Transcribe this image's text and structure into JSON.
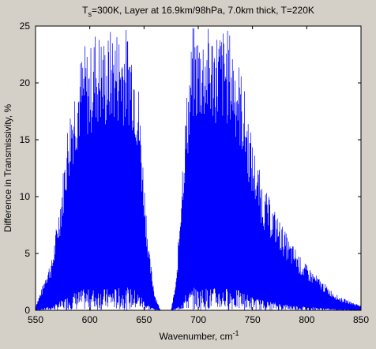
{
  "chart_data": {
    "type": "line",
    "title": {
      "main": "T",
      "sub": "s",
      "rest": "=300K, Layer at 16.9km/98hPa, 7.0km thick, T=220K"
    },
    "xlabel": {
      "main": "Wavenumber, cm",
      "sup": "-1"
    },
    "ylabel": "Difference in Transmissivity, %",
    "xlim": [
      550,
      850
    ],
    "ylim": [
      0,
      25
    ],
    "xticks": [
      550,
      600,
      650,
      700,
      750,
      800,
      850
    ],
    "yticks": [
      0,
      5,
      10,
      15,
      20,
      25
    ],
    "series": [
      {
        "color": "#0000ff",
        "sampling_note_cm-1": 0.5,
        "envelope": {
          "x": [
            550,
            556,
            560,
            565,
            570,
            575,
            580,
            585,
            590,
            595,
            600,
            605,
            610,
            615,
            620,
            625,
            630,
            635,
            640,
            645,
            650,
            655,
            660,
            665,
            670,
            675,
            680,
            685,
            690,
            695,
            700,
            705,
            710,
            715,
            720,
            725,
            730,
            735,
            740,
            745,
            750,
            755,
            760,
            765,
            770,
            775,
            780,
            785,
            790,
            795,
            800,
            805,
            810,
            815,
            820,
            825,
            830,
            835,
            840,
            845,
            850
          ],
          "y": [
            0.4,
            2.0,
            3.5,
            4.5,
            8.0,
            12.0,
            17.0,
            20.0,
            22.0,
            23.5,
            23.0,
            25.0,
            24.5,
            24.0,
            25.0,
            25.0,
            25.0,
            25.0,
            24.0,
            20.0,
            12.0,
            5.0,
            1.5,
            0.0,
            0.0,
            0.0,
            3.0,
            13.0,
            20.0,
            25.0,
            25.0,
            25.0,
            25.0,
            25.0,
            25.0,
            25.0,
            24.5,
            23.0,
            21.0,
            18.0,
            15.0,
            13.0,
            11.0,
            10.0,
            9.0,
            8.0,
            7.0,
            6.0,
            5.5,
            4.5,
            4.0,
            3.5,
            3.0,
            2.5,
            2.0,
            1.6,
            1.2,
            1.0,
            0.8,
            0.6,
            0.5
          ]
        }
      }
    ],
    "grid": false,
    "background_color": "#ffffff",
    "figure_color": "#d4d0c8"
  }
}
